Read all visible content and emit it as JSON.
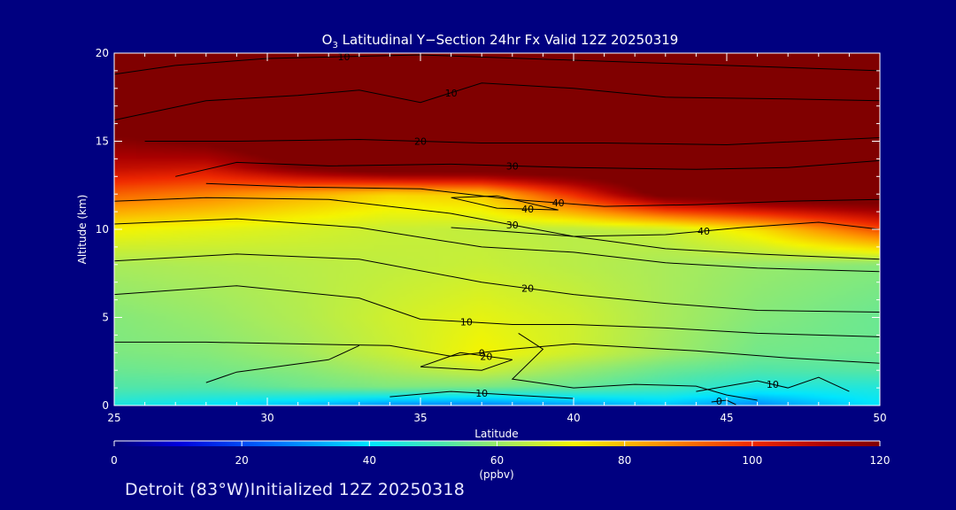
{
  "chart_data": {
    "type": "heatmap",
    "title_prefix": "O",
    "title_sub": "3",
    "title_rest": " Latitudinal Y−Section 24hr  Fx Valid 12Z 20250319",
    "xlabel": "Latitude",
    "ylabel": "Altitude (km)",
    "xlim": [
      25,
      50
    ],
    "ylim": [
      0,
      20
    ],
    "xticks": [
      25,
      30,
      35,
      40,
      45,
      50
    ],
    "yticks": [
      0,
      5,
      10,
      15,
      20
    ],
    "colorbar": {
      "label": "(ppbv)",
      "range": [
        0,
        120
      ],
      "ticks": [
        0,
        20,
        40,
        60,
        80,
        100,
        120
      ]
    },
    "ozone_ppbv": {
      "lat": [
        25,
        28,
        31,
        34,
        37,
        40,
        43,
        46,
        50
      ],
      "alt_km": [
        0,
        1,
        2,
        3,
        5,
        8,
        10,
        12,
        13.5,
        15,
        17,
        20
      ],
      "values": [
        [
          44,
          40,
          34,
          28,
          26,
          30,
          35,
          28,
          40
        ],
        [
          52,
          52,
          55,
          57,
          56,
          54,
          50,
          44,
          45
        ],
        [
          55,
          56,
          58,
          62,
          66,
          60,
          55,
          52,
          53
        ],
        [
          57,
          58,
          61,
          66,
          72,
          67,
          61,
          56,
          55
        ],
        [
          58,
          60,
          63,
          67,
          70,
          67,
          62,
          58,
          55
        ],
        [
          62,
          63,
          64,
          65,
          66,
          64,
          62,
          60,
          58
        ],
        [
          72,
          70,
          68,
          66,
          65,
          64,
          66,
          75,
          95
        ],
        [
          92,
          88,
          82,
          76,
          78,
          100,
          125,
          130,
          130
        ],
        [
          108,
          106,
          120,
          130,
          130,
          130,
          130,
          130,
          130
        ],
        [
          118,
          122,
          130,
          130,
          130,
          130,
          130,
          130,
          130
        ],
        [
          130,
          130,
          130,
          130,
          130,
          130,
          130,
          130,
          130
        ],
        [
          130,
          130,
          130,
          130,
          130,
          130,
          130,
          130,
          130
        ]
      ]
    },
    "contours": [
      {
        "label": "10",
        "points": [
          [
            25,
            18.8
          ],
          [
            27,
            19.3
          ],
          [
            30,
            19.7
          ],
          [
            35,
            19.9
          ],
          [
            40,
            19.6
          ],
          [
            45,
            19.3
          ],
          [
            50,
            19.0
          ]
        ]
      },
      {
        "label": "10",
        "points": [
          [
            25,
            16.2
          ],
          [
            28,
            17.3
          ],
          [
            31,
            17.6
          ],
          [
            33,
            17.9
          ],
          [
            35,
            17.2
          ],
          [
            37,
            18.3
          ],
          [
            40,
            18.0
          ],
          [
            43,
            17.5
          ],
          [
            47,
            17.4
          ],
          [
            50,
            17.3
          ]
        ]
      },
      {
        "label": "20",
        "points": [
          [
            26,
            15.0
          ],
          [
            29,
            15.0
          ],
          [
            33,
            15.1
          ],
          [
            37,
            14.9
          ],
          [
            41,
            14.9
          ],
          [
            45,
            14.8
          ],
          [
            50,
            15.2
          ]
        ]
      },
      {
        "label": "30",
        "points": [
          [
            27,
            13.0
          ],
          [
            29,
            13.8
          ],
          [
            32,
            13.6
          ],
          [
            36,
            13.7
          ],
          [
            40,
            13.5
          ],
          [
            44,
            13.4
          ],
          [
            47,
            13.5
          ],
          [
            50,
            13.9
          ]
        ]
      },
      {
        "label": "40",
        "points": [
          [
            28,
            12.6
          ],
          [
            31,
            12.4
          ],
          [
            35,
            12.3
          ],
          [
            38,
            11.7
          ],
          [
            41,
            11.3
          ],
          [
            44,
            11.4
          ],
          [
            47,
            11.6
          ],
          [
            50,
            11.7
          ]
        ]
      },
      {
        "label": "40",
        "points": [
          [
            36,
            11.8
          ],
          [
            37.5,
            11.2
          ],
          [
            39.5,
            11.1
          ],
          [
            37.5,
            11.9
          ],
          [
            36,
            11.8
          ]
        ]
      },
      {
        "label": "40",
        "points": [
          [
            36,
            10.1
          ],
          [
            40,
            9.6
          ],
          [
            43,
            9.7
          ],
          [
            45.5,
            10.1
          ],
          [
            48,
            10.4
          ],
          [
            50,
            10.0
          ]
        ]
      },
      {
        "label": "30",
        "points": [
          [
            25,
            11.6
          ],
          [
            28,
            11.8
          ],
          [
            32,
            11.7
          ],
          [
            36,
            10.9
          ],
          [
            40,
            9.6
          ],
          [
            43,
            8.9
          ],
          [
            46,
            8.6
          ],
          [
            50,
            8.3
          ]
        ]
      },
      {
        "label": "",
        "points": [
          [
            25,
            10.3
          ],
          [
            29,
            10.6
          ],
          [
            33,
            10.1
          ],
          [
            37,
            9.0
          ],
          [
            40,
            8.7
          ],
          [
            43,
            8.1
          ],
          [
            46,
            7.8
          ],
          [
            50,
            7.6
          ]
        ]
      },
      {
        "label": "20",
        "points": [
          [
            25,
            8.2
          ],
          [
            29,
            8.6
          ],
          [
            33,
            8.3
          ],
          [
            37,
            7.0
          ],
          [
            40,
            6.3
          ],
          [
            43,
            5.8
          ],
          [
            46,
            5.4
          ],
          [
            50,
            5.3
          ]
        ]
      },
      {
        "label": "10",
        "points": [
          [
            25,
            6.3
          ],
          [
            29,
            6.8
          ],
          [
            33,
            6.1
          ],
          [
            35,
            4.9
          ],
          [
            38,
            4.6
          ],
          [
            40,
            4.6
          ],
          [
            43,
            4.4
          ],
          [
            46,
            4.1
          ],
          [
            50,
            3.9
          ]
        ]
      },
      {
        "label": "0",
        "points": [
          [
            25,
            3.6
          ],
          [
            28,
            3.6
          ],
          [
            31,
            3.5
          ],
          [
            34,
            3.4
          ],
          [
            36,
            2.8
          ],
          [
            38,
            3.2
          ],
          [
            40,
            3.5
          ],
          [
            44,
            3.1
          ],
          [
            47,
            2.7
          ],
          [
            50,
            2.4
          ]
        ]
      },
      {
        "label": "20",
        "points": [
          [
            35,
            2.2
          ],
          [
            36.3,
            3.0
          ],
          [
            38,
            2.6
          ],
          [
            37,
            2.0
          ],
          [
            35,
            2.2
          ]
        ]
      },
      {
        "label": "",
        "points": [
          [
            33,
            3.4
          ],
          [
            32,
            2.6
          ],
          [
            29,
            1.9
          ],
          [
            28,
            1.3
          ]
        ]
      },
      {
        "label": "",
        "points": [
          [
            38.2,
            4.1
          ],
          [
            39,
            3.2
          ],
          [
            38,
            1.5
          ],
          [
            40,
            1.0
          ],
          [
            42,
            1.2
          ],
          [
            44,
            1.1
          ],
          [
            45,
            0.6
          ],
          [
            46,
            0.3
          ]
        ]
      },
      {
        "label": "10",
        "points": [
          [
            34,
            0.5
          ],
          [
            36,
            0.8
          ],
          [
            38,
            0.6
          ],
          [
            40,
            0.4
          ]
        ]
      },
      {
        "label": "10",
        "points": [
          [
            44,
            0.8
          ],
          [
            45,
            1.1
          ],
          [
            46,
            1.4
          ],
          [
            47,
            1.0
          ],
          [
            48,
            1.6
          ],
          [
            49,
            0.8
          ]
        ]
      },
      {
        "label": "0",
        "points": [
          [
            44.5,
            0.2
          ],
          [
            45,
            0.3
          ],
          [
            45.3,
            0.05
          ]
        ]
      }
    ]
  },
  "footer": {
    "text": "Detroit (83°W)Initialized 12Z 20250318"
  },
  "colors": {
    "background": "#000080",
    "axis": "#ffffff",
    "contour": "#000000"
  }
}
